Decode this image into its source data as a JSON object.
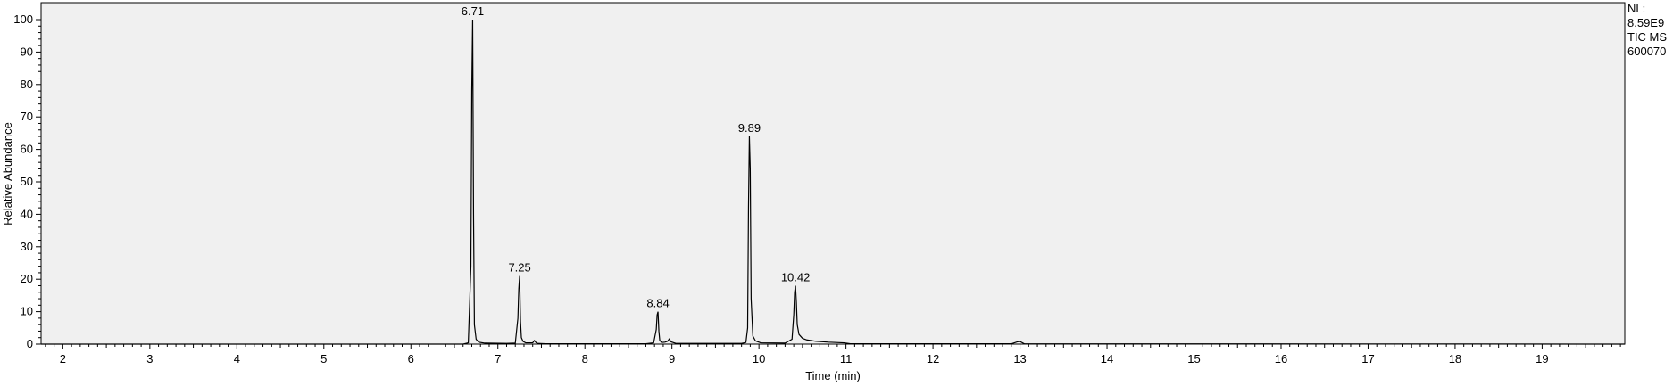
{
  "chart_data": {
    "type": "line",
    "title": "",
    "xlabel": "Time (min)",
    "ylabel": "Relative Abundance",
    "xlim": [
      1.75,
      19.95
    ],
    "ylim": [
      0,
      100
    ],
    "x_ticks": [
      2,
      3,
      4,
      5,
      6,
      7,
      8,
      9,
      10,
      11,
      12,
      13,
      14,
      15,
      16,
      17,
      18,
      19
    ],
    "y_ticks": [
      0,
      10,
      20,
      30,
      40,
      50,
      60,
      70,
      80,
      90,
      100
    ],
    "grid": false,
    "background_color": "#f0f0f0",
    "line_color": "#000000",
    "series": [
      {
        "x": [
          1.75,
          6.6,
          6.66,
          6.69,
          6.7,
          6.71,
          6.72,
          6.73,
          6.75,
          6.78,
          6.85,
          7.1,
          7.2,
          7.23,
          7.24,
          7.25,
          7.26,
          7.27,
          7.29,
          7.32,
          7.4,
          7.42,
          7.44,
          7.46,
          7.55,
          8.7,
          8.79,
          8.82,
          8.83,
          8.84,
          8.85,
          8.86,
          8.88,
          8.92,
          8.95,
          8.97,
          8.99,
          9.05,
          9.8,
          9.85,
          9.87,
          9.88,
          9.89,
          9.9,
          9.91,
          9.93,
          9.96,
          10.02,
          10.3,
          10.38,
          10.4,
          10.41,
          10.42,
          10.43,
          10.44,
          10.46,
          10.5,
          10.55,
          10.65,
          10.8,
          10.98,
          11.05,
          12.9,
          12.97,
          13.0,
          13.05,
          19.95
        ],
        "y": [
          0,
          0,
          0.4,
          24,
          78,
          100,
          40,
          6,
          1.5,
          0.6,
          0.3,
          0.2,
          0.3,
          8,
          17,
          21,
          7,
          2,
          0.8,
          0.4,
          0.4,
          1.1,
          0.4,
          0.2,
          0.1,
          0.1,
          0.4,
          4.5,
          9,
          10,
          4,
          1.2,
          0.5,
          0.6,
          0.9,
          1.6,
          0.7,
          0.2,
          0.2,
          0.5,
          5,
          42,
          64,
          54,
          14,
          2.5,
          1,
          0.4,
          0.3,
          1.5,
          9,
          16,
          18,
          13,
          6,
          3,
          1.8,
          1.3,
          0.9,
          0.6,
          0.4,
          0.1,
          0.1,
          0.7,
          0.8,
          0.1,
          0
        ]
      }
    ],
    "annotations": [
      {
        "x": 6.71,
        "y": 100,
        "text": "6.71"
      },
      {
        "x": 7.25,
        "y": 21,
        "text": "7.25"
      },
      {
        "x": 8.84,
        "y": 10,
        "text": "8.84"
      },
      {
        "x": 9.89,
        "y": 64,
        "text": "9.89"
      },
      {
        "x": 10.42,
        "y": 18,
        "text": "10.42"
      }
    ]
  },
  "info_box": {
    "line1": "NL:",
    "line2": "8.59E9",
    "line3": "TIC  MS",
    "line4": "600070"
  }
}
